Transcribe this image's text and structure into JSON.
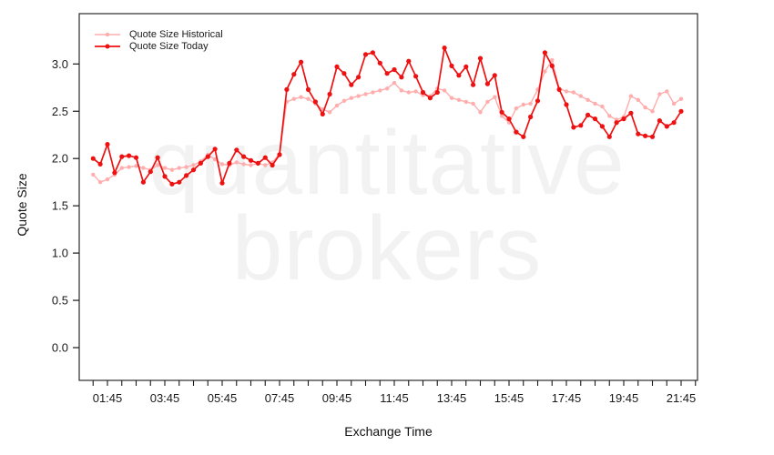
{
  "figure": {
    "watermark_line1": "quantitative",
    "watermark_line2": "brokers"
  },
  "colors": {
    "today": "#ee1111",
    "historical": "#ffadad",
    "watermark": "#f2f2f2",
    "axis": "#1a1a1a",
    "background": "#ffffff"
  },
  "chart_data": {
    "type": "line",
    "title": "",
    "xlabel": "Exchange Time",
    "ylabel": "Quote Size",
    "grid": false,
    "legend_position": "top-left",
    "x_tick_labels": [
      "01:45",
      "03:45",
      "05:45",
      "07:45",
      "09:45",
      "11:45",
      "13:45",
      "15:45",
      "17:45",
      "19:45",
      "21:45"
    ],
    "x_minor_tick_minutes": 30,
    "y_ticks": [
      0.0,
      0.5,
      1.0,
      1.5,
      2.0,
      2.5,
      3.0
    ],
    "ylim": [
      0.0,
      3.4
    ],
    "times": [
      "01:15",
      "01:30",
      "01:45",
      "02:00",
      "02:15",
      "02:30",
      "02:45",
      "03:00",
      "03:15",
      "03:30",
      "03:45",
      "04:00",
      "04:15",
      "04:30",
      "04:45",
      "05:00",
      "05:15",
      "05:30",
      "05:45",
      "06:00",
      "06:15",
      "06:30",
      "06:45",
      "07:00",
      "07:15",
      "07:30",
      "07:45",
      "08:00",
      "08:15",
      "08:30",
      "08:45",
      "09:00",
      "09:15",
      "09:30",
      "09:45",
      "10:00",
      "10:15",
      "10:30",
      "10:45",
      "11:00",
      "11:15",
      "11:30",
      "11:45",
      "12:00",
      "12:15",
      "12:30",
      "12:45",
      "13:00",
      "13:15",
      "13:30",
      "13:45",
      "14:00",
      "14:15",
      "14:30",
      "14:45",
      "15:00",
      "15:15",
      "15:30",
      "15:45",
      "16:00",
      "16:15",
      "16:30",
      "16:45",
      "17:00",
      "17:15",
      "17:30",
      "17:45",
      "18:00",
      "18:15",
      "18:30",
      "18:45",
      "19:00",
      "19:15",
      "19:30",
      "19:45",
      "20:00",
      "20:15",
      "20:30",
      "20:45",
      "21:00",
      "21:15",
      "21:30",
      "21:45"
    ],
    "series": [
      {
        "name": "Quote Size Historical",
        "color": "#ffadad",
        "values": [
          1.83,
          1.75,
          1.78,
          1.83,
          1.9,
          1.91,
          1.92,
          1.9,
          1.88,
          1.93,
          1.9,
          1.88,
          1.9,
          1.91,
          1.93,
          1.97,
          2.04,
          1.99,
          1.94,
          1.93,
          1.96,
          1.94,
          1.93,
          1.95,
          1.93,
          1.96,
          2.05,
          2.6,
          2.63,
          2.65,
          2.63,
          2.58,
          2.52,
          2.49,
          2.56,
          2.61,
          2.64,
          2.66,
          2.68,
          2.7,
          2.72,
          2.74,
          2.8,
          2.72,
          2.7,
          2.71,
          2.67,
          2.66,
          2.74,
          2.72,
          2.64,
          2.62,
          2.6,
          2.58,
          2.49,
          2.6,
          2.65,
          2.45,
          2.38,
          2.53,
          2.57,
          2.58,
          2.73,
          2.92,
          3.04,
          2.74,
          2.71,
          2.7,
          2.66,
          2.62,
          2.58,
          2.55,
          2.45,
          2.41,
          2.44,
          2.66,
          2.62,
          2.54,
          2.5,
          2.68,
          2.71,
          2.58,
          2.63
        ]
      },
      {
        "name": "Quote Size Today",
        "color": "#ee1111",
        "values": [
          2.0,
          1.94,
          2.15,
          1.85,
          2.02,
          2.03,
          2.01,
          1.75,
          1.86,
          2.01,
          1.81,
          1.73,
          1.75,
          1.82,
          1.88,
          1.95,
          2.02,
          2.1,
          1.74,
          1.95,
          2.09,
          2.02,
          1.98,
          1.95,
          2.01,
          1.93,
          2.04,
          2.73,
          2.89,
          3.02,
          2.73,
          2.6,
          2.47,
          2.68,
          2.97,
          2.9,
          2.78,
          2.86,
          3.1,
          3.12,
          3.01,
          2.9,
          2.94,
          2.86,
          3.03,
          2.87,
          2.7,
          2.64,
          2.7,
          3.17,
          2.98,
          2.88,
          2.97,
          2.78,
          3.06,
          2.79,
          2.88,
          2.49,
          2.42,
          2.28,
          2.23,
          2.44,
          2.61,
          3.12,
          2.98,
          2.73,
          2.57,
          2.33,
          2.35,
          2.46,
          2.42,
          2.34,
          2.23,
          2.38,
          2.42,
          2.48,
          2.26,
          2.24,
          2.23,
          2.4,
          2.34,
          2.38,
          2.5
        ]
      }
    ]
  }
}
